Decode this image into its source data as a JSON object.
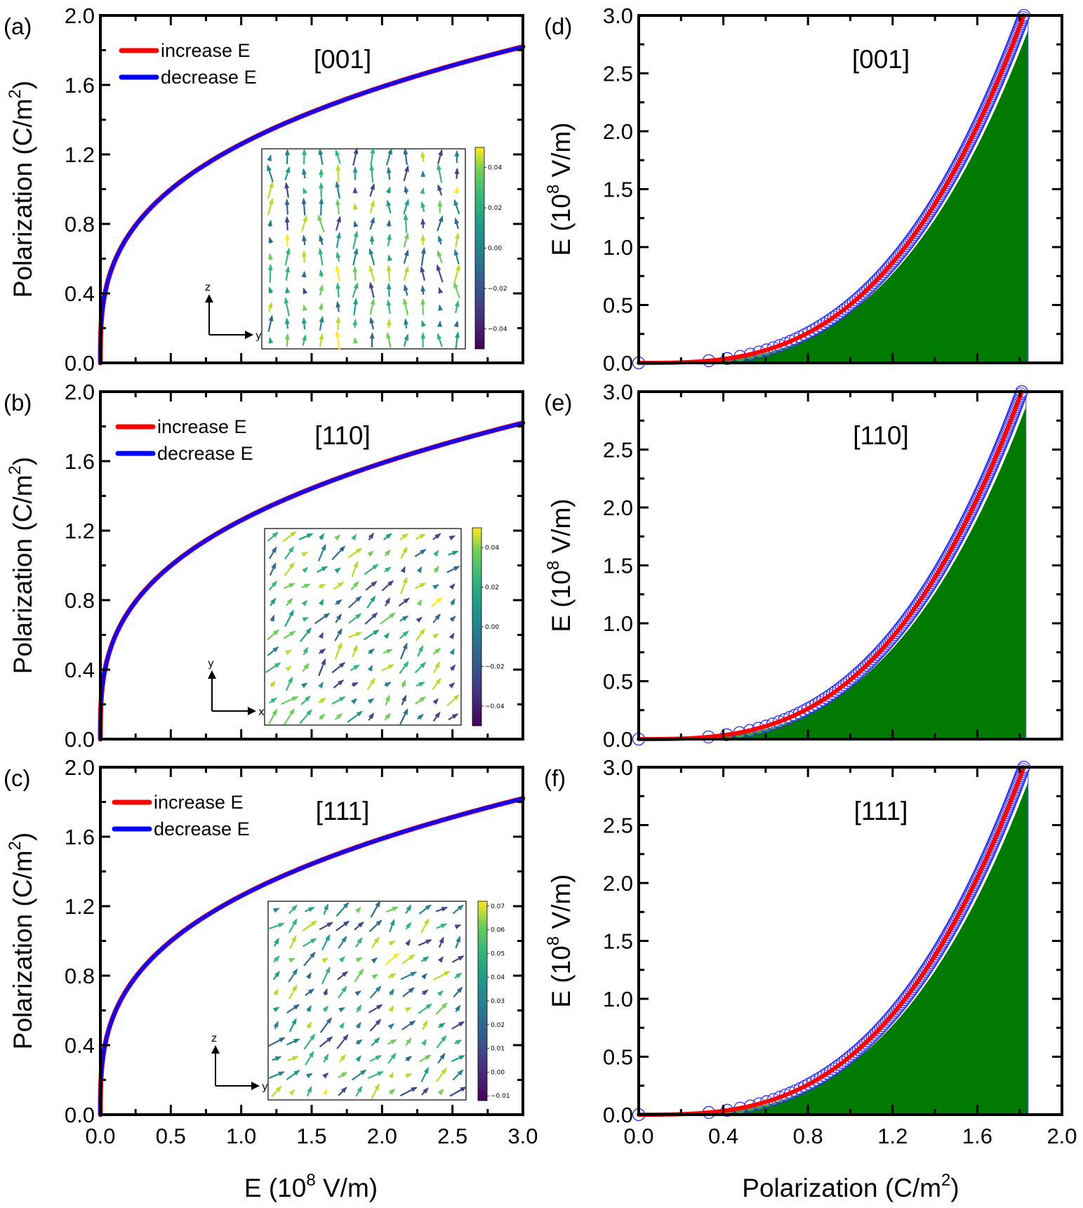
{
  "figure": {
    "left_column_xlabel": "E (10",
    "left_column_xlabel_sup": "8",
    "left_column_xlabel_tail": " V/m)",
    "right_column_xlabel": "Polarization (C/m",
    "right_column_xlabel_sup": "2",
    "right_column_xlabel_tail": ")",
    "left_ylabel": "Polarization (C/m",
    "left_ylabel_sup": "2",
    "left_ylabel_tail": ")",
    "right_ylabel": "E (10",
    "right_ylabel_sup": "8",
    "right_ylabel_tail": " V/m)",
    "colors": {
      "increase": "#ff0000",
      "decrease": "#0000ff",
      "fill": "#007a00",
      "marker": "#2a2aff"
    }
  },
  "chart_data": [
    {
      "panel": "(a)",
      "type": "line",
      "direction": "[001]",
      "xlabel": "E (10^8 V/m)",
      "ylabel": "Polarization (C/m^2)",
      "xlim": [
        0,
        3.0
      ],
      "ylim": [
        0,
        2.0
      ],
      "xticks": [
        "0.0",
        "0.5",
        "1.0",
        "1.5",
        "2.0",
        "2.5",
        "3.0"
      ],
      "yticks": [
        "0.0",
        "0.4",
        "0.8",
        "1.2",
        "1.6",
        "2.0"
      ],
      "legend": [
        "increase E",
        "decrease E"
      ],
      "legend_position": "top-left",
      "series": [
        {
          "name": "increase E",
          "x": [
            0,
            0.005,
            0.02,
            0.05,
            0.1,
            0.2,
            0.3,
            0.5,
            0.75,
            1.0,
            1.25,
            1.5,
            1.75,
            2.0,
            2.25,
            2.5,
            2.75,
            3.0
          ],
          "y": [
            0,
            0.22,
            0.34,
            0.46,
            0.58,
            0.73,
            0.84,
            0.99,
            1.13,
            1.24,
            1.34,
            1.42,
            1.5,
            1.58,
            1.64,
            1.7,
            1.76,
            1.82
          ]
        },
        {
          "name": "decrease E",
          "x": [
            0,
            0.005,
            0.02,
            0.05,
            0.1,
            0.2,
            0.3,
            0.5,
            0.75,
            1.0,
            1.25,
            1.5,
            1.75,
            2.0,
            2.25,
            2.5,
            2.75,
            3.0
          ],
          "y": [
            0,
            0.22,
            0.34,
            0.46,
            0.58,
            0.73,
            0.84,
            0.99,
            1.13,
            1.24,
            1.34,
            1.42,
            1.5,
            1.58,
            1.64,
            1.7,
            1.76,
            1.82
          ]
        }
      ],
      "inset": {
        "type": "quiver",
        "axes": [
          "y",
          "z"
        ],
        "colorbar_ticks": [
          "0.04",
          "0.02",
          "0.00",
          "−0.02",
          "−0.04"
        ],
        "colorbar_range": [
          -0.05,
          0.05
        ]
      }
    },
    {
      "panel": "(b)",
      "type": "line",
      "direction": "[110]",
      "xlabel": "E (10^8 V/m)",
      "ylabel": "Polarization (C/m^2)",
      "xlim": [
        0,
        3.0
      ],
      "ylim": [
        0,
        2.0
      ],
      "xticks": [
        "0.0",
        "0.5",
        "1.0",
        "1.5",
        "2.0",
        "2.5",
        "3.0"
      ],
      "yticks": [
        "0.0",
        "0.4",
        "0.8",
        "1.2",
        "1.6",
        "2.0"
      ],
      "legend": [
        "increase E",
        "decrease E"
      ],
      "legend_position": "top-left",
      "series": [
        {
          "name": "increase E",
          "x": [
            0,
            0.005,
            0.02,
            0.05,
            0.1,
            0.2,
            0.3,
            0.5,
            0.75,
            1.0,
            1.25,
            1.5,
            1.75,
            2.0,
            2.25,
            2.5,
            2.75,
            3.0
          ],
          "y": [
            0,
            0.22,
            0.34,
            0.46,
            0.58,
            0.73,
            0.84,
            0.99,
            1.13,
            1.24,
            1.34,
            1.42,
            1.5,
            1.57,
            1.64,
            1.7,
            1.75,
            1.81
          ]
        },
        {
          "name": "decrease E",
          "x": [
            0,
            0.005,
            0.02,
            0.05,
            0.1,
            0.2,
            0.3,
            0.5,
            0.75,
            1.0,
            1.25,
            1.5,
            1.75,
            2.0,
            2.25,
            2.5,
            2.75,
            3.0
          ],
          "y": [
            0,
            0.22,
            0.34,
            0.46,
            0.58,
            0.73,
            0.84,
            0.99,
            1.13,
            1.24,
            1.34,
            1.42,
            1.5,
            1.57,
            1.64,
            1.7,
            1.75,
            1.81
          ]
        }
      ],
      "inset": {
        "type": "quiver",
        "axes": [
          "x",
          "y"
        ],
        "colorbar_ticks": [
          "0.04",
          "0.02",
          "0.00",
          "−0.02",
          "−0.04"
        ],
        "colorbar_range": [
          -0.05,
          0.05
        ]
      }
    },
    {
      "panel": "(c)",
      "type": "line",
      "direction": "[111]",
      "xlabel": "E (10^8 V/m)",
      "ylabel": "Polarization (C/m^2)",
      "xlim": [
        0,
        3.0
      ],
      "ylim": [
        0,
        2.0
      ],
      "xticks": [
        "0.0",
        "0.5",
        "1.0",
        "1.5",
        "2.0",
        "2.5",
        "3.0"
      ],
      "yticks": [
        "0.0",
        "0.4",
        "0.8",
        "1.2",
        "1.6",
        "2.0"
      ],
      "legend": [
        "increase E",
        "decrease E"
      ],
      "legend_position": "top-left",
      "series": [
        {
          "name": "increase E",
          "x": [
            0,
            0.005,
            0.02,
            0.05,
            0.1,
            0.2,
            0.3,
            0.5,
            0.75,
            1.0,
            1.25,
            1.5,
            1.75,
            2.0,
            2.25,
            2.5,
            2.75,
            3.0
          ],
          "y": [
            0,
            0.22,
            0.34,
            0.46,
            0.58,
            0.73,
            0.84,
            0.99,
            1.13,
            1.24,
            1.34,
            1.42,
            1.5,
            1.58,
            1.64,
            1.7,
            1.76,
            1.82
          ]
        },
        {
          "name": "decrease E",
          "x": [
            0,
            0.005,
            0.02,
            0.05,
            0.1,
            0.2,
            0.3,
            0.5,
            0.75,
            1.0,
            1.25,
            1.5,
            1.75,
            2.0,
            2.25,
            2.5,
            2.75,
            3.0
          ],
          "y": [
            0,
            0.22,
            0.34,
            0.46,
            0.58,
            0.73,
            0.84,
            0.99,
            1.13,
            1.24,
            1.34,
            1.42,
            1.5,
            1.58,
            1.64,
            1.7,
            1.76,
            1.82
          ]
        }
      ],
      "inset": {
        "type": "quiver",
        "axes": [
          "y",
          "z"
        ],
        "colorbar_ticks": [
          "0.07",
          "0.06",
          "0.05",
          "0.04",
          "0.03",
          "0.02",
          "0.01",
          "0.00",
          "−0.01"
        ],
        "colorbar_range": [
          -0.012,
          0.072
        ]
      }
    },
    {
      "panel": "(d)",
      "type": "area",
      "direction": "[001]",
      "xlabel": "Polarization (C/m^2)",
      "ylabel": "E (10^8 V/m)",
      "xlim": [
        0,
        2.0
      ],
      "ylim": [
        0,
        3.0
      ],
      "xticks": [
        "0.0",
        "0.4",
        "0.8",
        "1.2",
        "1.6",
        "2.0"
      ],
      "yticks": [
        "0.0",
        "0.5",
        "1.0",
        "1.5",
        "2.0",
        "2.5",
        "3.0"
      ],
      "shaded_region_xmax": 1.84,
      "series": [
        {
          "name": "increase E (line)",
          "x": [
            0,
            0.2,
            0.4,
            0.6,
            0.8,
            1.0,
            1.2,
            1.4,
            1.6,
            1.82
          ],
          "y": [
            0,
            0.02,
            0.08,
            0.22,
            0.45,
            0.79,
            1.23,
            1.77,
            2.38,
            3.0
          ]
        },
        {
          "name": "decrease E (circles)",
          "x": [
            0,
            0.2,
            0.4,
            0.6,
            0.8,
            1.0,
            1.2,
            1.4,
            1.6,
            1.82
          ],
          "y": [
            0,
            0.02,
            0.08,
            0.22,
            0.45,
            0.79,
            1.23,
            1.77,
            2.38,
            3.0
          ]
        }
      ]
    },
    {
      "panel": "(e)",
      "type": "area",
      "direction": "[110]",
      "xlabel": "Polarization (C/m^2)",
      "ylabel": "E (10^8 V/m)",
      "xlim": [
        0,
        2.0
      ],
      "ylim": [
        0,
        3.0
      ],
      "xticks": [
        "0.0",
        "0.4",
        "0.8",
        "1.2",
        "1.6",
        "2.0"
      ],
      "yticks": [
        "0.0",
        "0.5",
        "1.0",
        "1.5",
        "2.0",
        "2.5",
        "3.0"
      ],
      "shaded_region_xmax": 1.83,
      "series": [
        {
          "name": "increase E (line)",
          "x": [
            0,
            0.2,
            0.4,
            0.6,
            0.8,
            1.0,
            1.2,
            1.4,
            1.6,
            1.81
          ],
          "y": [
            0,
            0.02,
            0.08,
            0.22,
            0.46,
            0.8,
            1.25,
            1.8,
            2.42,
            3.0
          ]
        },
        {
          "name": "decrease E (circles)",
          "x": [
            0,
            0.2,
            0.4,
            0.6,
            0.8,
            1.0,
            1.2,
            1.4,
            1.6,
            1.81
          ],
          "y": [
            0,
            0.02,
            0.08,
            0.22,
            0.46,
            0.8,
            1.25,
            1.8,
            2.42,
            3.0
          ]
        }
      ]
    },
    {
      "panel": "(f)",
      "type": "area",
      "direction": "[111]",
      "xlabel": "Polarization (C/m^2)",
      "ylabel": "E (10^8 V/m)",
      "xlim": [
        0,
        2.0
      ],
      "ylim": [
        0,
        3.0
      ],
      "xticks": [
        "0.0",
        "0.4",
        "0.8",
        "1.2",
        "1.6",
        "2.0"
      ],
      "yticks": [
        "0.0",
        "0.5",
        "1.0",
        "1.5",
        "2.0",
        "2.5",
        "3.0"
      ],
      "shaded_region_xmax": 1.84,
      "series": [
        {
          "name": "increase E (line)",
          "x": [
            0,
            0.2,
            0.4,
            0.6,
            0.8,
            1.0,
            1.2,
            1.4,
            1.6,
            1.82
          ],
          "y": [
            0,
            0.02,
            0.08,
            0.22,
            0.45,
            0.79,
            1.23,
            1.77,
            2.38,
            3.0
          ]
        },
        {
          "name": "decrease E (circles)",
          "x": [
            0,
            0.2,
            0.4,
            0.6,
            0.8,
            1.0,
            1.2,
            1.4,
            1.6,
            1.82
          ],
          "y": [
            0,
            0.02,
            0.08,
            0.22,
            0.45,
            0.79,
            1.23,
            1.77,
            2.38,
            3.0
          ]
        }
      ]
    }
  ]
}
